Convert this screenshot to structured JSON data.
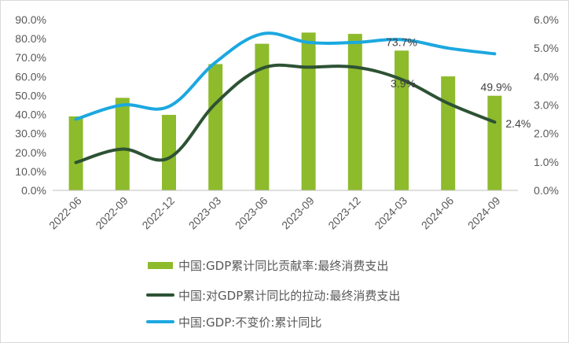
{
  "chart_data": {
    "type": "bar+line",
    "categories": [
      "2022-06",
      "2022-09",
      "2022-12",
      "2023-03",
      "2023-06",
      "2023-09",
      "2023-12",
      "2024-03",
      "2024-06",
      "2024-09"
    ],
    "left_axis": {
      "ticks": [
        "0.0%",
        "10.0%",
        "20.0%",
        "30.0%",
        "40.0%",
        "50.0%",
        "60.0%",
        "70.0%",
        "80.0%",
        "90.0%"
      ],
      "ylim": [
        0,
        90
      ]
    },
    "right_axis": {
      "ticks": [
        "0.0%",
        "1.0%",
        "2.0%",
        "3.0%",
        "4.0%",
        "5.0%",
        "6.0%"
      ],
      "ylim": [
        0,
        6
      ]
    },
    "series": [
      {
        "name": "中国:GDP累计同比贡献率:最终消费支出",
        "type": "bar",
        "axis": "left",
        "color": "#8dbb2c",
        "values": [
          39.0,
          48.8,
          39.8,
          66.6,
          77.3,
          83.2,
          82.5,
          73.7,
          60.1,
          49.9
        ]
      },
      {
        "name": "中国:对GDP累计同比的拉动:最终消费支出",
        "type": "line",
        "axis": "right",
        "color": "#2d5234",
        "values": [
          0.98,
          1.45,
          1.14,
          3.05,
          4.29,
          4.33,
          4.33,
          3.9,
          3.06,
          2.4
        ]
      },
      {
        "name": "中国:GDP:不变价:累计同比",
        "type": "line",
        "axis": "right",
        "color": "#1ca8e0",
        "values": [
          2.5,
          3.0,
          2.95,
          4.5,
          5.5,
          5.2,
          5.2,
          5.3,
          5.0,
          4.8
        ]
      }
    ],
    "data_labels": [
      {
        "series": 0,
        "index": 7,
        "text": "73.7%"
      },
      {
        "series": 0,
        "index": 9,
        "text": "49.9%"
      },
      {
        "series": 1,
        "index": 7,
        "text": "3.9%"
      },
      {
        "series": 1,
        "index": 9,
        "text": "2.4%"
      }
    ],
    "legend_position": "bottom",
    "grid": false
  }
}
